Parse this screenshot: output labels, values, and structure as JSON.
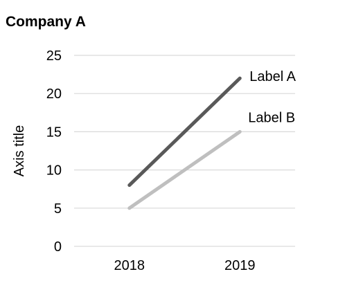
{
  "chart_data": {
    "type": "line",
    "title": "Company A",
    "xlabel": "",
    "ylabel": "Axis title",
    "categories": [
      "2018",
      "2019"
    ],
    "ylim": [
      0,
      25
    ],
    "yticks": [
      0,
      5,
      10,
      15,
      20,
      25
    ],
    "grid": true,
    "legend": "none",
    "series": [
      {
        "name": "Label A",
        "values": [
          8,
          22
        ],
        "color": "#595959"
      },
      {
        "name": "Label B",
        "values": [
          5,
          15
        ],
        "color": "#bfbfbf"
      }
    ]
  }
}
